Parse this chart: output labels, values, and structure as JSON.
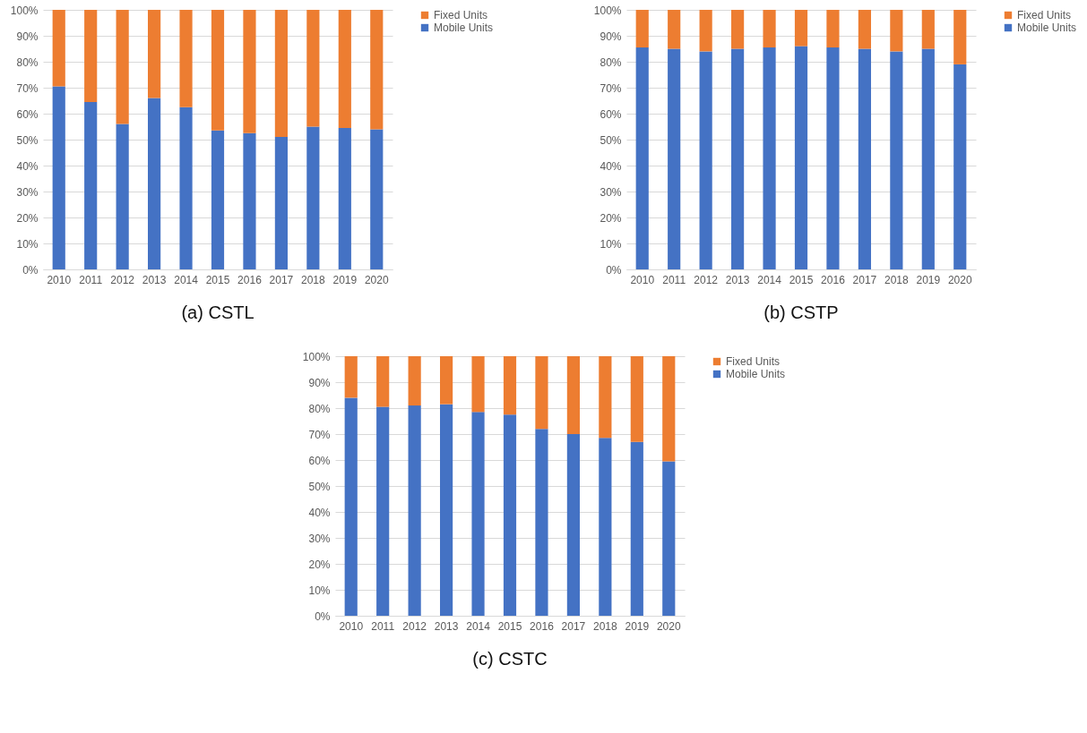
{
  "chart_data": [
    {
      "type": "bar",
      "title": "(a) CSTL",
      "stacked": true,
      "categories": [
        "2010",
        "2011",
        "2012",
        "2013",
        "2014",
        "2015",
        "2016",
        "2017",
        "2018",
        "2019",
        "2020"
      ],
      "series": [
        {
          "name": "Mobile Units",
          "color": "#4472c4",
          "values": [
            70.5,
            64.5,
            56,
            66,
            62.5,
            53.5,
            52.5,
            51,
            55,
            54.5,
            54
          ]
        },
        {
          "name": "Fixed Units",
          "color": "#ed7d31",
          "values": [
            29.5,
            35.5,
            44,
            34,
            37.5,
            46.5,
            47.5,
            49,
            45,
            45.5,
            46
          ]
        }
      ],
      "ylim": [
        0,
        100
      ],
      "yticks": [
        {
          "value": 0,
          "label": "0%"
        },
        {
          "value": 10,
          "label": "10%"
        },
        {
          "value": 20,
          "label": "20%"
        },
        {
          "value": 30,
          "label": "30%"
        },
        {
          "value": 40,
          "label": "40%"
        },
        {
          "value": 50,
          "label": "50%"
        },
        {
          "value": 60,
          "label": "60%"
        },
        {
          "value": 70,
          "label": "70%"
        },
        {
          "value": 80,
          "label": "80%"
        },
        {
          "value": 90,
          "label": "90%"
        },
        {
          "value": 100,
          "label": "100%"
        }
      ],
      "grid": "y",
      "legend": "right"
    },
    {
      "type": "bar",
      "title": "(b) CSTP",
      "stacked": true,
      "categories": [
        "2010",
        "2011",
        "2012",
        "2013",
        "2014",
        "2015",
        "2016",
        "2017",
        "2018",
        "2019",
        "2020"
      ],
      "series": [
        {
          "name": "Mobile Units",
          "color": "#4472c4",
          "values": [
            85.5,
            85,
            84,
            85,
            85.5,
            86,
            85.5,
            85,
            84,
            85,
            79
          ]
        },
        {
          "name": "Fixed Units",
          "color": "#ed7d31",
          "values": [
            14.5,
            15,
            16,
            15,
            14.5,
            14,
            14.5,
            15,
            16,
            15,
            21
          ]
        }
      ],
      "ylim": [
        0,
        100
      ],
      "yticks": [
        {
          "value": 0,
          "label": "0%"
        },
        {
          "value": 10,
          "label": "10%"
        },
        {
          "value": 20,
          "label": "20%"
        },
        {
          "value": 30,
          "label": "30%"
        },
        {
          "value": 40,
          "label": "40%"
        },
        {
          "value": 50,
          "label": "50%"
        },
        {
          "value": 60,
          "label": "60%"
        },
        {
          "value": 70,
          "label": "70%"
        },
        {
          "value": 80,
          "label": "80%"
        },
        {
          "value": 90,
          "label": "90%"
        },
        {
          "value": 100,
          "label": "100%"
        }
      ],
      "grid": "y",
      "legend": "right"
    },
    {
      "type": "bar",
      "title": "(c) CSTC",
      "stacked": true,
      "categories": [
        "2010",
        "2011",
        "2012",
        "2013",
        "2014",
        "2015",
        "2016",
        "2017",
        "2018",
        "2019",
        "2020"
      ],
      "series": [
        {
          "name": "Mobile Units",
          "color": "#4472c4",
          "values": [
            84,
            80.5,
            81,
            81.5,
            78.5,
            77.5,
            72,
            70,
            68.5,
            67,
            59.5
          ]
        },
        {
          "name": "Fixed Units",
          "color": "#ed7d31",
          "values": [
            16,
            19.5,
            19,
            18.5,
            21.5,
            22.5,
            28,
            30,
            31.5,
            33,
            40.5
          ]
        }
      ],
      "ylim": [
        0,
        100
      ],
      "yticks": [
        {
          "value": 0,
          "label": "0%"
        },
        {
          "value": 10,
          "label": "10%"
        },
        {
          "value": 20,
          "label": "20%"
        },
        {
          "value": 30,
          "label": "30%"
        },
        {
          "value": 40,
          "label": "40%"
        },
        {
          "value": 50,
          "label": "50%"
        },
        {
          "value": 60,
          "label": "60%"
        },
        {
          "value": 70,
          "label": "70%"
        },
        {
          "value": 80,
          "label": "80%"
        },
        {
          "value": 90,
          "label": "90%"
        },
        {
          "value": 100,
          "label": "100%"
        }
      ],
      "grid": "y",
      "legend": "right"
    }
  ]
}
